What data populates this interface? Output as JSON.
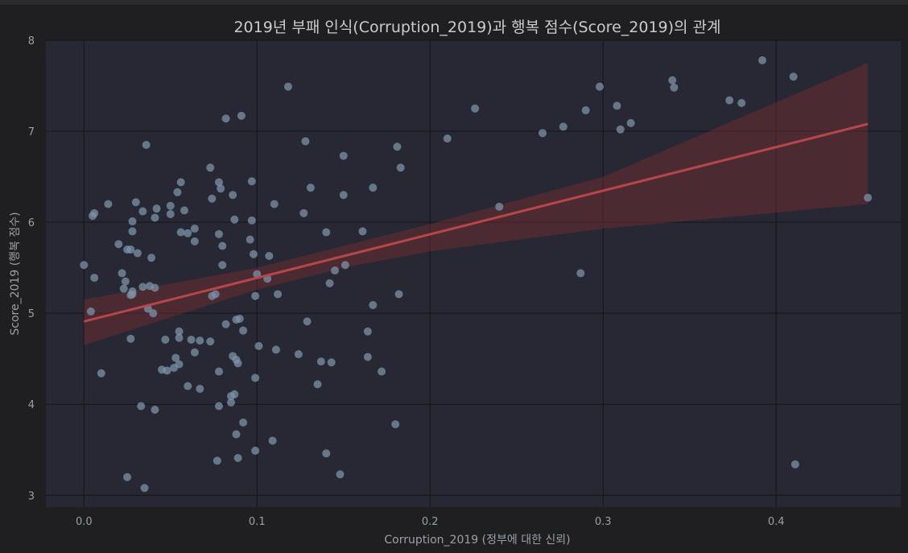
{
  "chart_data": {
    "type": "scatter",
    "title": "2019년 부패 인식(Corruption_2019)과 행복 점수(Score_2019)의 관계",
    "xlabel": "Corruption_2019 (정부에 대한 신뢰)",
    "ylabel": "Score_2019 (행복 점수)",
    "xlim": [
      -0.022,
      0.472
    ],
    "ylim": [
      2.87,
      8.0
    ],
    "x_ticks": [
      0.0,
      0.1,
      0.2,
      0.3,
      0.4
    ],
    "x_tick_labels": [
      "0.0",
      "0.1",
      "0.2",
      "0.3",
      "0.4"
    ],
    "y_ticks": [
      3,
      4,
      5,
      6,
      7,
      8
    ],
    "y_tick_labels": [
      "3",
      "4",
      "5",
      "6",
      "7",
      "8"
    ],
    "grid": true,
    "point_color": "#7b93a8",
    "line_color": "#b5474a",
    "band_color": "#7a2c30",
    "plot_bg": "#272833",
    "regression": {
      "x": [
        0.0,
        0.453
      ],
      "y": [
        4.91,
        7.08
      ],
      "ci_x": [
        0.0,
        0.1,
        0.15,
        0.2,
        0.3,
        0.453
      ],
      "ci_lower": [
        4.65,
        5.26,
        5.5,
        5.68,
        5.93,
        6.2
      ],
      "ci_upper": [
        5.15,
        5.5,
        5.74,
        5.98,
        6.5,
        7.75
      ]
    },
    "points": [
      [
        0.0,
        5.53
      ],
      [
        0.004,
        5.02
      ],
      [
        0.005,
        6.07
      ],
      [
        0.006,
        6.1
      ],
      [
        0.006,
        5.39
      ],
      [
        0.01,
        4.34
      ],
      [
        0.014,
        6.2
      ],
      [
        0.02,
        5.76
      ],
      [
        0.022,
        5.44
      ],
      [
        0.023,
        5.27
      ],
      [
        0.024,
        5.35
      ],
      [
        0.025,
        3.2
      ],
      [
        0.025,
        5.7
      ],
      [
        0.027,
        5.2
      ],
      [
        0.027,
        4.72
      ],
      [
        0.028,
        5.24
      ],
      [
        0.028,
        5.21
      ],
      [
        0.028,
        6.01
      ],
      [
        0.028,
        5.9
      ],
      [
        0.027,
        5.7
      ],
      [
        0.03,
        6.22
      ],
      [
        0.031,
        5.66
      ],
      [
        0.033,
        3.98
      ],
      [
        0.034,
        5.29
      ],
      [
        0.034,
        6.12
      ],
      [
        0.035,
        3.08
      ],
      [
        0.036,
        6.85
      ],
      [
        0.037,
        5.05
      ],
      [
        0.038,
        5.3
      ],
      [
        0.039,
        5.61
      ],
      [
        0.04,
        5.0
      ],
      [
        0.041,
        6.05
      ],
      [
        0.041,
        5.28
      ],
      [
        0.041,
        3.94
      ],
      [
        0.042,
        6.15
      ],
      [
        0.045,
        4.38
      ],
      [
        0.047,
        4.71
      ],
      [
        0.048,
        4.37
      ],
      [
        0.05,
        6.18
      ],
      [
        0.05,
        6.09
      ],
      [
        0.052,
        4.4
      ],
      [
        0.053,
        4.51
      ],
      [
        0.054,
        6.33
      ],
      [
        0.055,
        4.44
      ],
      [
        0.055,
        4.8
      ],
      [
        0.055,
        4.73
      ],
      [
        0.056,
        5.89
      ],
      [
        0.056,
        6.44
      ],
      [
        0.058,
        6.13
      ],
      [
        0.06,
        5.88
      ],
      [
        0.06,
        4.2
      ],
      [
        0.062,
        4.71
      ],
      [
        0.064,
        4.57
      ],
      [
        0.064,
        5.93
      ],
      [
        0.064,
        5.79
      ],
      [
        0.067,
        4.17
      ],
      [
        0.067,
        4.7
      ],
      [
        0.073,
        4.69
      ],
      [
        0.073,
        6.6
      ],
      [
        0.074,
        5.19
      ],
      [
        0.074,
        6.26
      ],
      [
        0.076,
        5.21
      ],
      [
        0.077,
        3.38
      ],
      [
        0.078,
        5.87
      ],
      [
        0.078,
        4.36
      ],
      [
        0.078,
        3.98
      ],
      [
        0.078,
        6.44
      ],
      [
        0.079,
        6.37
      ],
      [
        0.08,
        5.53
      ],
      [
        0.08,
        5.74
      ],
      [
        0.082,
        7.14
      ],
      [
        0.082,
        4.88
      ],
      [
        0.085,
        4.02
      ],
      [
        0.085,
        4.09
      ],
      [
        0.086,
        6.3
      ],
      [
        0.086,
        4.53
      ],
      [
        0.087,
        6.03
      ],
      [
        0.087,
        4.11
      ],
      [
        0.088,
        4.49
      ],
      [
        0.088,
        4.93
      ],
      [
        0.088,
        3.67
      ],
      [
        0.089,
        3.41
      ],
      [
        0.089,
        4.45
      ],
      [
        0.09,
        4.94
      ],
      [
        0.091,
        7.17
      ],
      [
        0.092,
        3.8
      ],
      [
        0.092,
        4.81
      ],
      [
        0.096,
        5.81
      ],
      [
        0.097,
        6.45
      ],
      [
        0.097,
        6.02
      ],
      [
        0.098,
        5.65
      ],
      [
        0.099,
        5.19
      ],
      [
        0.099,
        3.49
      ],
      [
        0.099,
        4.29
      ],
      [
        0.1,
        5.43
      ],
      [
        0.101,
        4.64
      ],
      [
        0.106,
        5.38
      ],
      [
        0.107,
        5.63
      ],
      [
        0.109,
        3.6
      ],
      [
        0.11,
        6.2
      ],
      [
        0.111,
        4.6
      ],
      [
        0.112,
        5.21
      ],
      [
        0.118,
        7.49
      ],
      [
        0.124,
        4.55
      ],
      [
        0.127,
        6.1
      ],
      [
        0.128,
        6.89
      ],
      [
        0.129,
        4.91
      ],
      [
        0.131,
        6.38
      ],
      [
        0.135,
        4.22
      ],
      [
        0.137,
        4.47
      ],
      [
        0.14,
        5.89
      ],
      [
        0.14,
        3.46
      ],
      [
        0.142,
        5.33
      ],
      [
        0.143,
        4.46
      ],
      [
        0.145,
        5.47
      ],
      [
        0.148,
        3.23
      ],
      [
        0.15,
        6.3
      ],
      [
        0.15,
        6.73
      ],
      [
        0.151,
        5.53
      ],
      [
        0.161,
        5.9
      ],
      [
        0.164,
        4.8
      ],
      [
        0.164,
        4.52
      ],
      [
        0.167,
        5.09
      ],
      [
        0.167,
        6.38
      ],
      [
        0.172,
        4.36
      ],
      [
        0.18,
        3.78
      ],
      [
        0.181,
        6.83
      ],
      [
        0.182,
        5.21
      ],
      [
        0.183,
        6.6
      ],
      [
        0.21,
        6.92
      ],
      [
        0.226,
        7.25
      ],
      [
        0.24,
        6.17
      ],
      [
        0.265,
        6.98
      ],
      [
        0.277,
        7.05
      ],
      [
        0.287,
        5.44
      ],
      [
        0.29,
        7.23
      ],
      [
        0.298,
        7.49
      ],
      [
        0.308,
        7.28
      ],
      [
        0.31,
        7.02
      ],
      [
        0.316,
        7.09
      ],
      [
        0.34,
        7.56
      ],
      [
        0.341,
        7.48
      ],
      [
        0.373,
        7.34
      ],
      [
        0.38,
        7.31
      ],
      [
        0.392,
        7.78
      ],
      [
        0.41,
        7.6
      ],
      [
        0.411,
        3.34
      ],
      [
        0.453,
        6.27
      ]
    ]
  }
}
